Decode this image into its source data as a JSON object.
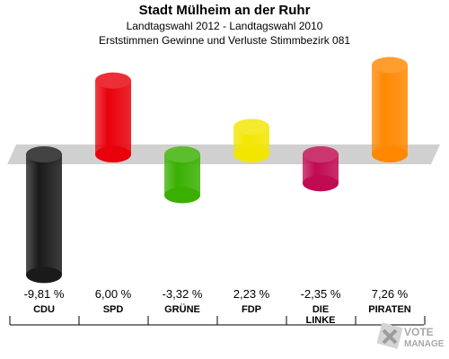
{
  "header": {
    "title": "Stadt Mülheim an der Ruhr",
    "subtitle1": "Landtagswahl 2012 - Landtagswahl 2010",
    "subtitle2": "Erststimmen Gewinne und Verluste Stimmbezirk 081"
  },
  "chart_data": {
    "type": "bar",
    "categories": [
      [
        "CDU"
      ],
      [
        "SPD"
      ],
      [
        "GRÜNE"
      ],
      [
        "FDP"
      ],
      [
        "DIE",
        "LINKE"
      ],
      [
        "PIRATEN"
      ]
    ],
    "values": [
      -9.81,
      6.0,
      -3.32,
      2.23,
      -2.35,
      7.26
    ],
    "value_labels": [
      "-9,81 %",
      "6,00 %",
      "-3,32 %",
      "2,23 %",
      "-2,35 %",
      "7,26 %"
    ],
    "colors": [
      "#1a1a1a",
      "#e8000b",
      "#39b000",
      "#f2e600",
      "#c00a52",
      "#ff8800"
    ],
    "ylim": [
      -10.5,
      8
    ],
    "grid": false,
    "legend": "none"
  },
  "watermark": {
    "line1": "VOTE",
    "line2": "MANAGER"
  }
}
